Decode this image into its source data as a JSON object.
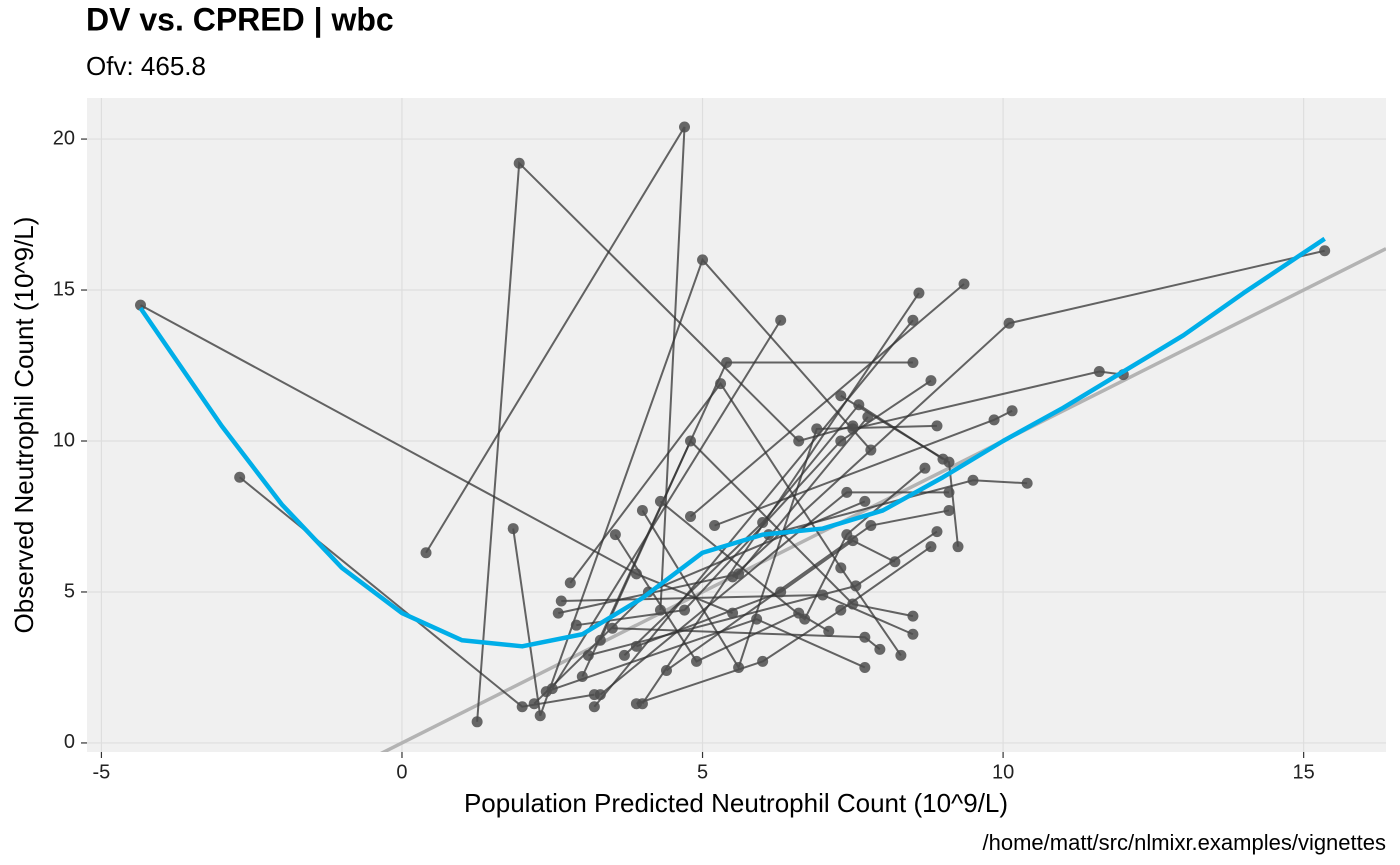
{
  "chart_data": {
    "type": "scatter",
    "title": "DV vs. CPRED | wbc",
    "subtitle": "Ofv: 465.8",
    "x_label": "Population Predicted Neutrophil Count (10^9/L)",
    "y_label": "Observed Neutrophil Count (10^9/L)",
    "caption": "/home/matt/src/nlmixr.examples/vignettes",
    "xlim": [
      -5.24,
      16.37
    ],
    "ylim": [
      -0.3,
      21.36
    ],
    "xticks": [
      -5,
      0,
      5,
      10,
      15
    ],
    "yticks": [
      0,
      5,
      10,
      15,
      20
    ],
    "grid": true,
    "point_color": "#4d4d4d",
    "line_color": "#333333",
    "smooth_color": "#00aee8",
    "reference_color": "#b3b3b3",
    "reference_line": {
      "slope": 1,
      "intercept": 0
    },
    "subjects": [
      {
        "x": [
          -4.35,
          3.9,
          5.5
        ],
        "y": [
          14.5,
          5.6,
          4.3
        ]
      },
      {
        "x": [
          -2.7,
          2.0,
          3.2
        ],
        "y": [
          8.8,
          1.2,
          1.6
        ]
      },
      {
        "x": [
          0.4,
          4.7,
          4.3
        ],
        "y": [
          6.3,
          20.4,
          4.4
        ]
      },
      {
        "x": [
          1.25,
          1.95,
          6.6,
          7.5
        ],
        "y": [
          0.7,
          19.2,
          10.0,
          10.5
        ]
      },
      {
        "x": [
          1.85,
          2.3,
          5.0,
          7.8
        ],
        "y": [
          7.1,
          0.9,
          16.0,
          9.7
        ]
      },
      {
        "x": [
          3.3,
          4.8,
          7.5,
          8.5
        ],
        "y": [
          3.4,
          10.0,
          4.6,
          4.2
        ]
      },
      {
        "x": [
          2.5,
          6.3
        ],
        "y": [
          1.8,
          14.0
        ]
      },
      {
        "x": [
          3.0,
          5.4,
          8.5
        ],
        "y": [
          2.2,
          12.6,
          12.6
        ]
      },
      {
        "x": [
          2.8,
          5.3,
          7.3,
          8.3
        ],
        "y": [
          5.3,
          11.9,
          5.8,
          2.9
        ]
      },
      {
        "x": [
          4.0,
          8.6
        ],
        "y": [
          1.3,
          14.9
        ]
      },
      {
        "x": [
          3.2,
          8.5
        ],
        "y": [
          1.2,
          14.0
        ]
      },
      {
        "x": [
          4.8,
          9.35
        ],
        "y": [
          7.5,
          15.2
        ]
      },
      {
        "x": [
          5.5,
          10.1,
          15.35
        ],
        "y": [
          5.5,
          13.9,
          16.3
        ]
      },
      {
        "x": [
          7.5,
          11.6,
          12.0
        ],
        "y": [
          10.4,
          12.3,
          12.2
        ]
      },
      {
        "x": [
          5.2,
          9.85,
          10.15
        ],
        "y": [
          7.2,
          10.7,
          11.0
        ]
      },
      {
        "x": [
          6.1,
          9.5,
          10.4
        ],
        "y": [
          6.9,
          8.7,
          8.6
        ]
      },
      {
        "x": [
          7.3,
          9.1,
          9.25
        ],
        "y": [
          11.5,
          9.3,
          6.5
        ]
      },
      {
        "x": [
          2.65,
          7.0,
          8.5
        ],
        "y": [
          4.7,
          4.9,
          3.6
        ]
      },
      {
        "x": [
          3.5,
          7.7,
          7.95
        ],
        "y": [
          3.8,
          3.5,
          3.1
        ]
      },
      {
        "x": [
          3.1,
          7.55,
          8.9
        ],
        "y": [
          2.9,
          5.2,
          7.0
        ]
      },
      {
        "x": [
          4.4,
          7.8,
          9.1
        ],
        "y": [
          2.4,
          7.2,
          7.7
        ]
      },
      {
        "x": [
          3.9,
          6.0,
          7.3,
          8.8
        ],
        "y": [
          1.3,
          2.7,
          4.4,
          6.5
        ]
      },
      {
        "x": [
          2.4,
          5.9,
          7.7
        ],
        "y": [
          1.7,
          4.1,
          2.5
        ]
      },
      {
        "x": [
          3.55,
          4.9,
          6.6,
          7.1
        ],
        "y": [
          6.9,
          2.7,
          4.3,
          3.7
        ]
      },
      {
        "x": [
          2.9,
          4.7,
          7.3,
          8.8
        ],
        "y": [
          3.9,
          4.4,
          10.0,
          12.0
        ]
      },
      {
        "x": [
          4.0,
          5.6,
          6.9,
          8.9
        ],
        "y": [
          7.7,
          2.5,
          10.4,
          10.5
        ]
      },
      {
        "x": [
          3.7,
          6.0,
          7.6,
          9.0
        ],
        "y": [
          2.9,
          7.3,
          11.2,
          9.4
        ]
      },
      {
        "x": [
          2.6,
          5.6,
          7.75
        ],
        "y": [
          4.3,
          5.6,
          10.8
        ]
      },
      {
        "x": [
          4.3,
          6.7,
          7.4,
          8.7
        ],
        "y": [
          8.0,
          4.1,
          6.9,
          9.1
        ]
      },
      {
        "x": [
          3.3,
          7.4,
          9.1
        ],
        "y": [
          1.6,
          8.3,
          8.3
        ]
      },
      {
        "x": [
          3.9,
          6.3,
          7.5,
          8.2
        ],
        "y": [
          3.2,
          5.0,
          6.7,
          6.0
        ]
      },
      {
        "x": [
          2.2,
          4.1,
          7.7
        ],
        "y": [
          1.3,
          5.0,
          8.0
        ]
      }
    ],
    "smooth": {
      "x": [
        -4.35,
        -3,
        -2,
        -1,
        0,
        1,
        2,
        3,
        4,
        5,
        6,
        7,
        8,
        9,
        10,
        11,
        12,
        13,
        14,
        15.35
      ],
      "y": [
        14.4,
        10.5,
        7.9,
        5.8,
        4.3,
        3.4,
        3.2,
        3.6,
        4.8,
        6.3,
        6.9,
        7.1,
        7.7,
        8.8,
        10.0,
        11.1,
        12.3,
        13.5,
        14.9,
        16.7
      ]
    }
  }
}
